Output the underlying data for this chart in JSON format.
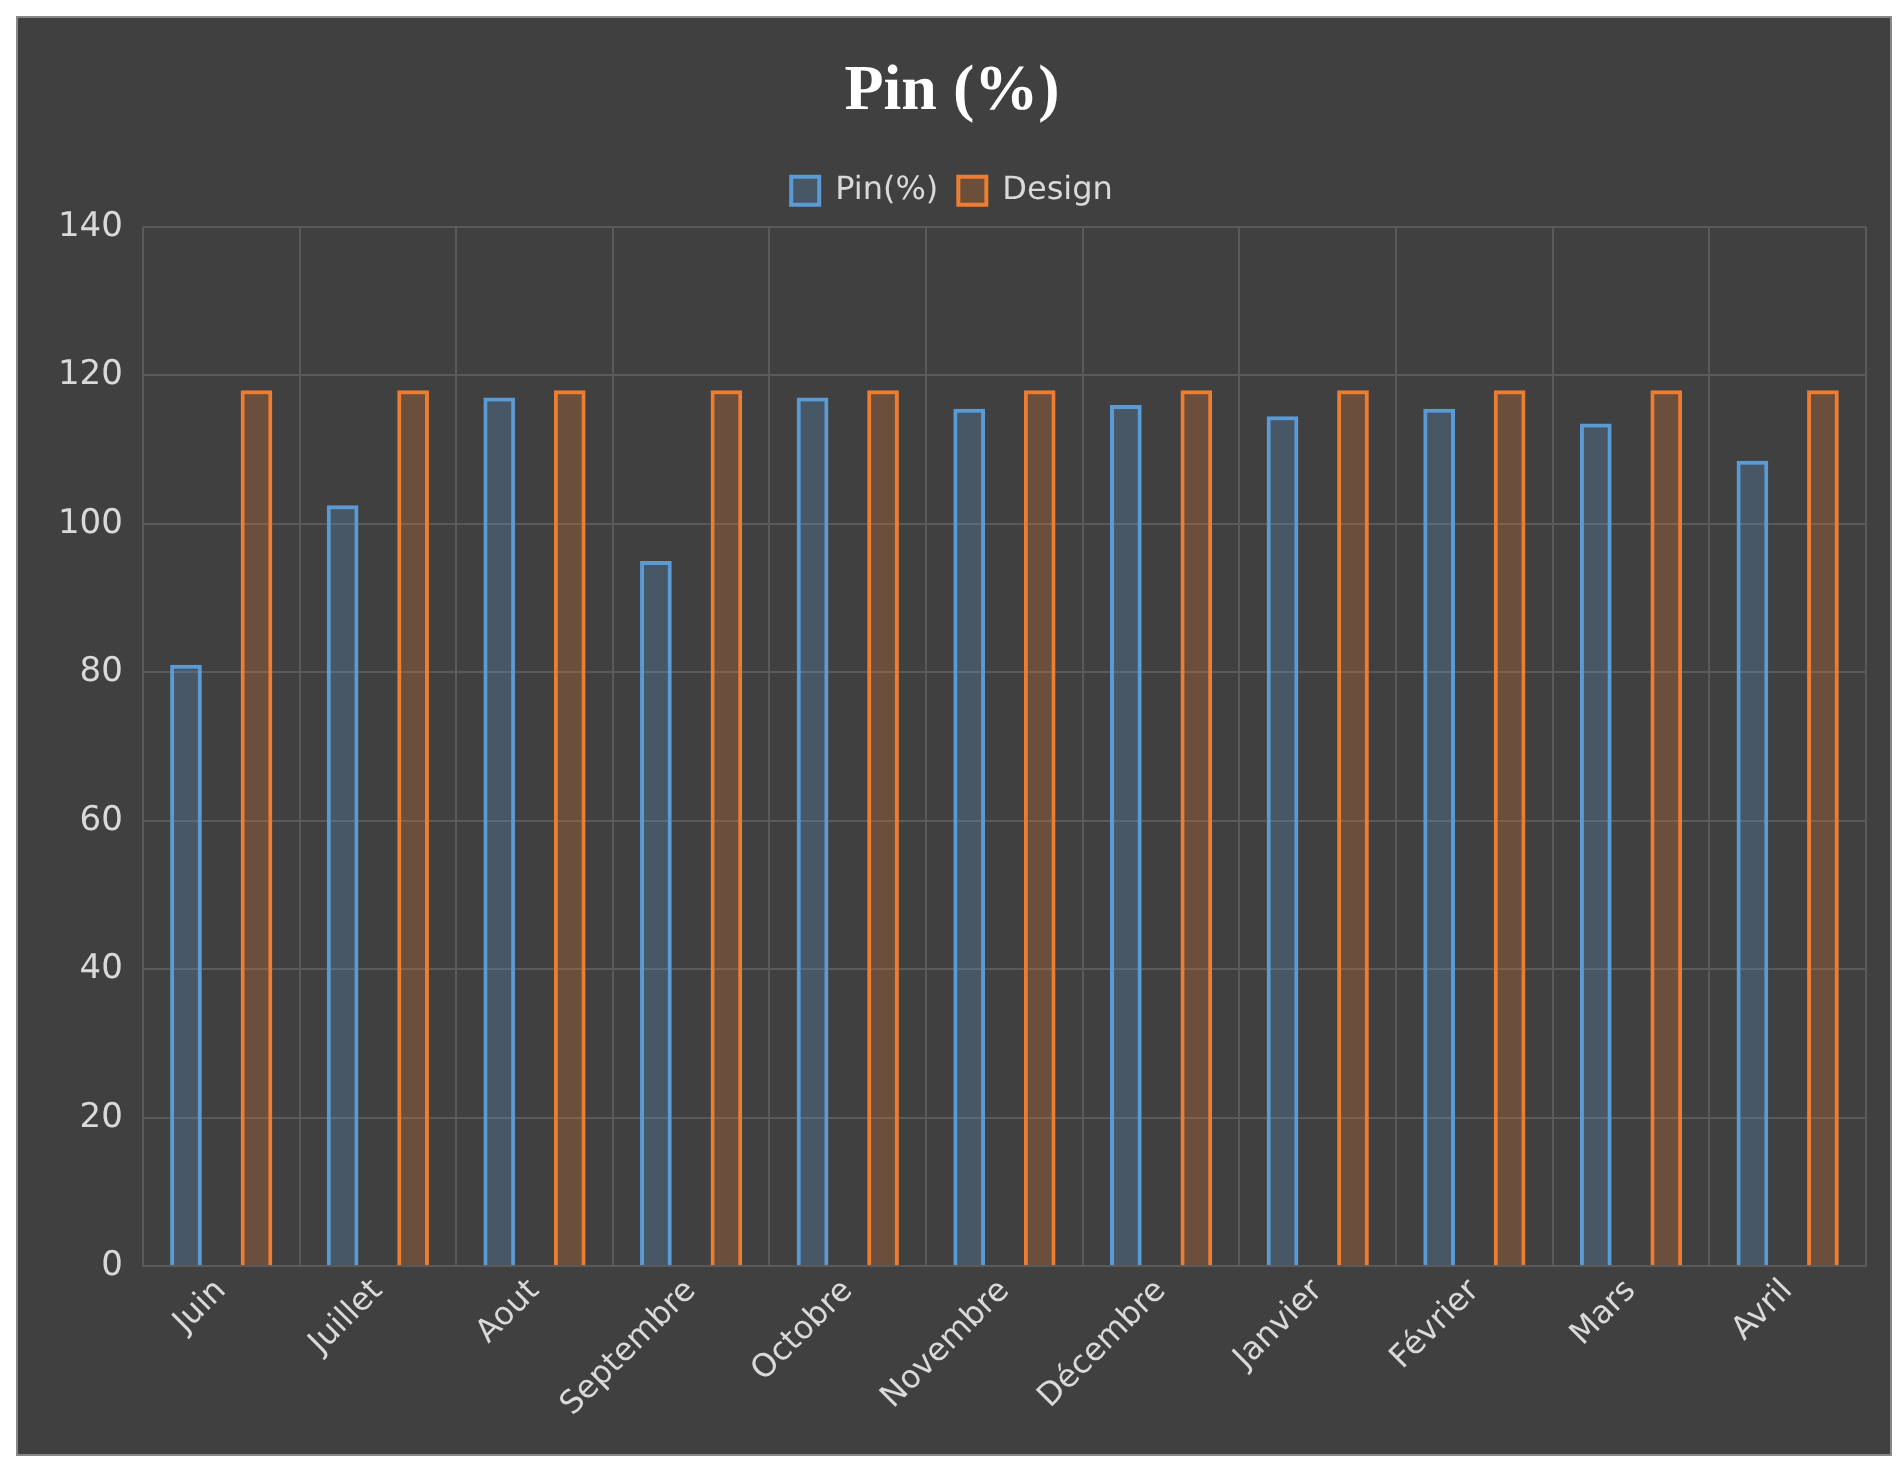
{
  "chart_data": {
    "type": "bar",
    "title": "Pin (%)",
    "categories": [
      "Juin",
      "Juillet",
      "Aout",
      "Septembre",
      "Octobre",
      "Novembre",
      "Décembre",
      "Janvier",
      "Février",
      "Mars",
      "Avril"
    ],
    "series": [
      {
        "name": "Pin(%)",
        "color": "#5b9bd5",
        "values": [
          81,
          102.5,
          117,
          95,
          117,
          115.5,
          116,
          114.5,
          115.5,
          113.5,
          108.5
        ]
      },
      {
        "name": "Design",
        "color": "#ed7d31",
        "values": [
          118,
          118,
          118,
          118,
          118,
          118,
          118,
          118,
          118,
          118,
          118
        ]
      }
    ],
    "ylim": [
      0,
      140
    ],
    "yticks": [
      0,
      20,
      40,
      60,
      80,
      100,
      120,
      140
    ],
    "grid": true,
    "legend": "top"
  }
}
